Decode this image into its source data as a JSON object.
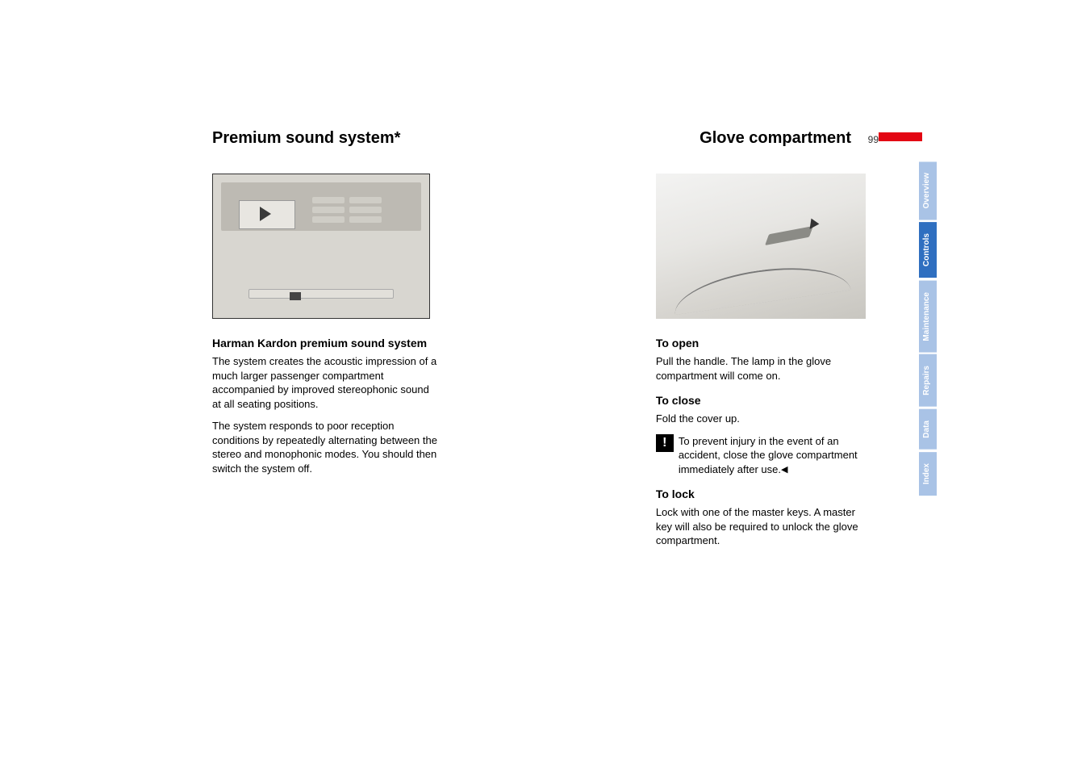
{
  "page": {
    "number": "99",
    "left_heading": "Premium sound system*",
    "right_heading": "Glove compartment"
  },
  "left_col": {
    "image_id": "MVB9919GMA",
    "subhead": "Harman Kardon premium sound system",
    "para1": "The system creates the acoustic impression of a much larger passenger compartment accompanied by improved stereophonic sound at all seating positions.",
    "para2": "The system responds to poor reception conditions by repeatedly alternating between the stereo and monophonic modes. You should then switch the system off."
  },
  "right_col": {
    "image_id": "MVB9244FMA",
    "open_head": "To open",
    "open_body": "Pull the handle. The lamp in the glove compartment will come on.",
    "close_head": "To close",
    "close_body": "Fold the cover up.",
    "warn_body": "To prevent injury in the event of an accident, close the glove compartment immediately after use.",
    "lock_head": "To lock",
    "lock_body": "Lock with one of the master keys. A master key will also be required to unlock the glove compartment."
  },
  "tabs": [
    {
      "label": "Overview",
      "active": false
    },
    {
      "label": "Controls",
      "active": true
    },
    {
      "label": "Maintenance",
      "active": false
    },
    {
      "label": "Repairs",
      "active": false
    },
    {
      "label": "Data",
      "active": false
    },
    {
      "label": "Index",
      "active": false
    }
  ],
  "colors": {
    "tab_active": "#2f6fc0",
    "tab_inactive": "#a9c3e6",
    "page_bar": "#e30613"
  }
}
